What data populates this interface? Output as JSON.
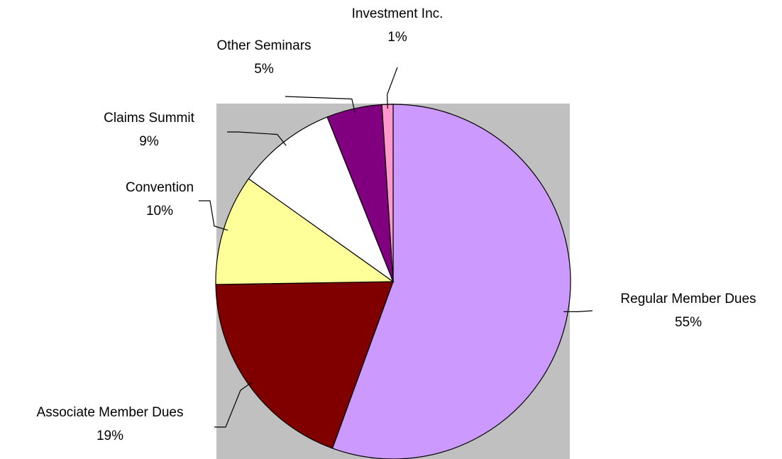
{
  "chart_data": {
    "type": "pie",
    "categories": [
      "Regular Member Dues",
      "Associate Member Dues",
      "Convention",
      "Claims Summit",
      "Other Seminars",
      "Investment Inc."
    ],
    "values": [
      55,
      19,
      10,
      9,
      5,
      1
    ],
    "value_labels": [
      "55%",
      "19%",
      "10%",
      "9%",
      "5%",
      "1%"
    ],
    "colors": [
      "#cc99ff",
      "#800000",
      "#ffff99",
      "#ffffff",
      "#800080",
      "#ff99cc"
    ],
    "start_angle": "top",
    "direction": "clockwise"
  }
}
